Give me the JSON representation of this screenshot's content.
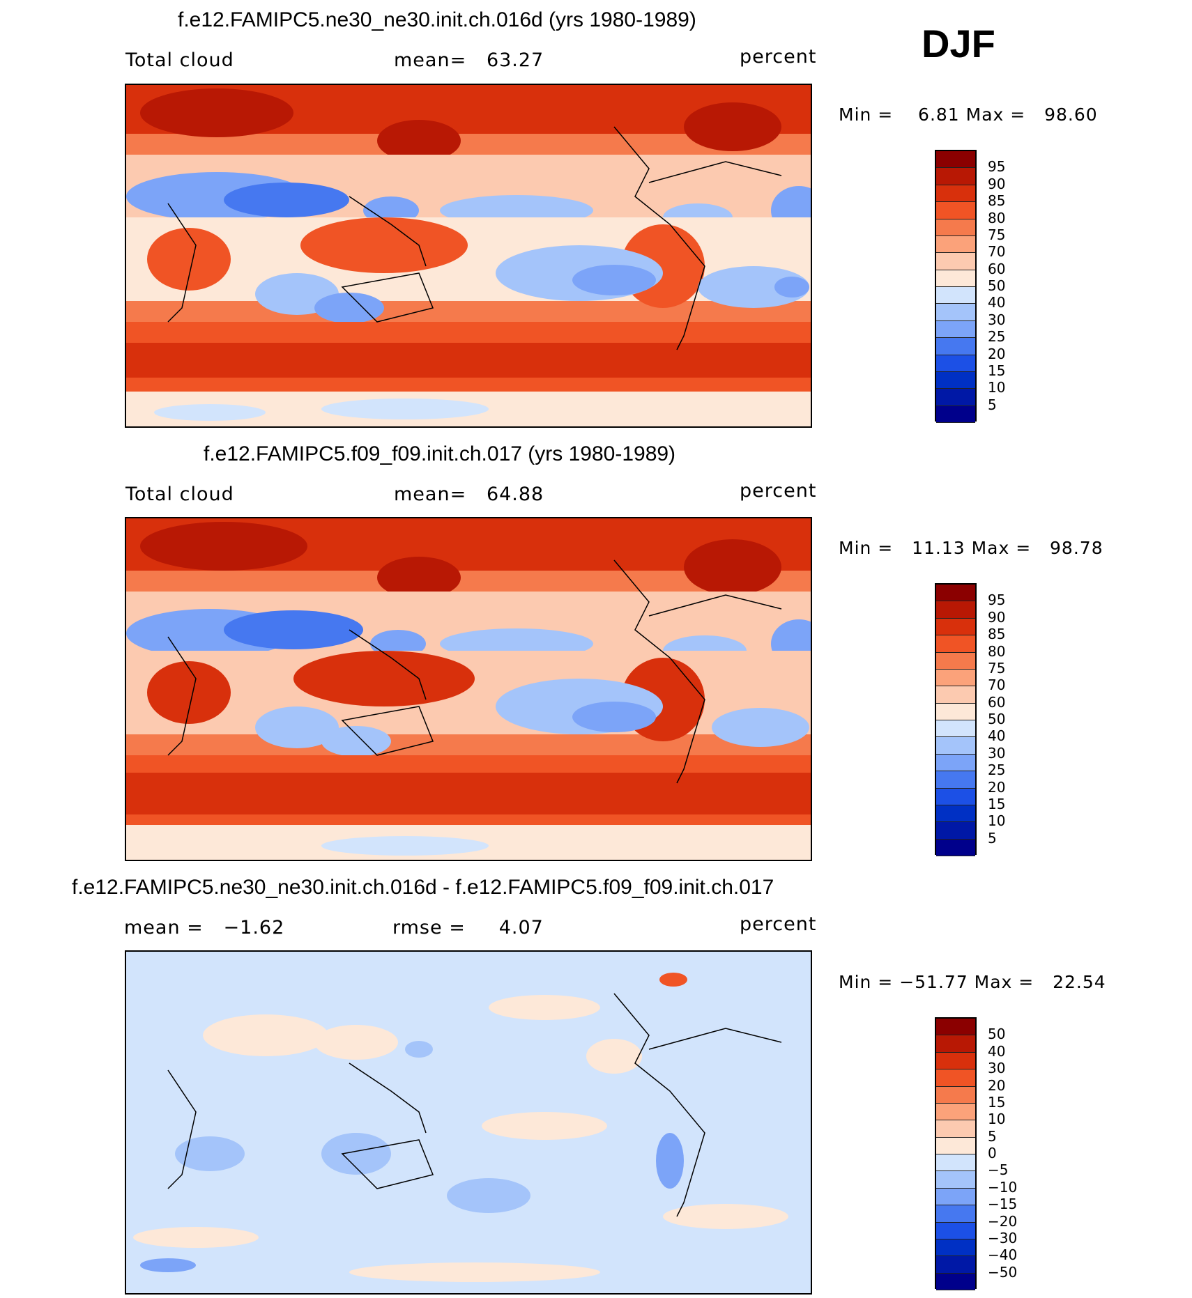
{
  "season": "DJF",
  "colors": {
    "abs_levels": [
      "#00008b",
      "#0018a6",
      "#0030c4",
      "#1c50e6",
      "#4678f0",
      "#7ca4f8",
      "#a4c4fa",
      "#d2e4fc",
      "#fde8d8",
      "#fccab0",
      "#fba27a",
      "#f57a4c",
      "#f05425",
      "#d8300c",
      "#b81804",
      "#8b0000"
    ],
    "diff_levels": [
      "#00008b",
      "#0018a6",
      "#0030c4",
      "#1c50e6",
      "#4678f0",
      "#7ca4f8",
      "#a4c4fa",
      "#d2e4fc",
      "#fde8d8",
      "#fccab0",
      "#fba27a",
      "#f57a4c",
      "#f05425",
      "#d8300c",
      "#b81804",
      "#8b0000"
    ]
  },
  "panels": [
    {
      "title": "f.e12.FAMIPC5.ne30_ne30.init.ch.016d (yrs 1980-1989)",
      "left_label": "Total cloud",
      "center_label": "mean=   63.27",
      "units": "percent",
      "minmax": "Min =    6.81 Max =   98.60",
      "colorbar_labels": [
        "95",
        "90",
        "85",
        "80",
        "75",
        "70",
        "60",
        "50",
        "40",
        "30",
        "25",
        "20",
        "15",
        "10",
        "5"
      ]
    },
    {
      "title": "f.e12.FAMIPC5.f09_f09.init.ch.017 (yrs 1980-1989)",
      "left_label": "Total cloud",
      "center_label": "mean=   64.88",
      "units": "percent",
      "minmax": "Min =   11.13 Max =   98.78",
      "colorbar_labels": [
        "95",
        "90",
        "85",
        "80",
        "75",
        "70",
        "60",
        "50",
        "40",
        "30",
        "25",
        "20",
        "15",
        "10",
        "5"
      ]
    },
    {
      "title": "f.e12.FAMIPC5.ne30_ne30.init.ch.016d - f.e12.FAMIPC5.f09_f09.init.ch.017",
      "left_label": "mean =   −1.62",
      "center_label": "rmse =     4.07",
      "units": "percent",
      "minmax": "Min = −51.77 Max =   22.54",
      "colorbar_labels": [
        "50",
        "40",
        "30",
        "20",
        "15",
        "10",
        "5",
        "0",
        "−5",
        "−10",
        "−15",
        "−20",
        "−30",
        "−40",
        "−50"
      ]
    }
  ],
  "chart_data": [
    {
      "type": "heatmap",
      "title": "f.e12.FAMIPC5.ne30_ne30.init.ch.016d (yrs 1980-1989)",
      "variable": "Total cloud",
      "units": "percent",
      "mean": 63.27,
      "min": 6.81,
      "max": 98.6,
      "contour_levels": [
        5,
        10,
        15,
        20,
        25,
        30,
        40,
        50,
        60,
        70,
        75,
        80,
        85,
        90,
        95
      ]
    },
    {
      "type": "heatmap",
      "title": "f.e12.FAMIPC5.f09_f09.init.ch.017 (yrs 1980-1989)",
      "variable": "Total cloud",
      "units": "percent",
      "mean": 64.88,
      "min": 11.13,
      "max": 98.78,
      "contour_levels": [
        5,
        10,
        15,
        20,
        25,
        30,
        40,
        50,
        60,
        70,
        75,
        80,
        85,
        90,
        95
      ]
    },
    {
      "type": "heatmap",
      "title": "f.e12.FAMIPC5.ne30_ne30.init.ch.016d - f.e12.FAMIPC5.f09_f09.init.ch.017",
      "units": "percent",
      "mean": -1.62,
      "rmse": 4.07,
      "min": -51.77,
      "max": 22.54,
      "contour_levels": [
        -50,
        -40,
        -30,
        -20,
        -15,
        -10,
        -5,
        0,
        5,
        10,
        15,
        20,
        30,
        40,
        50
      ]
    }
  ]
}
